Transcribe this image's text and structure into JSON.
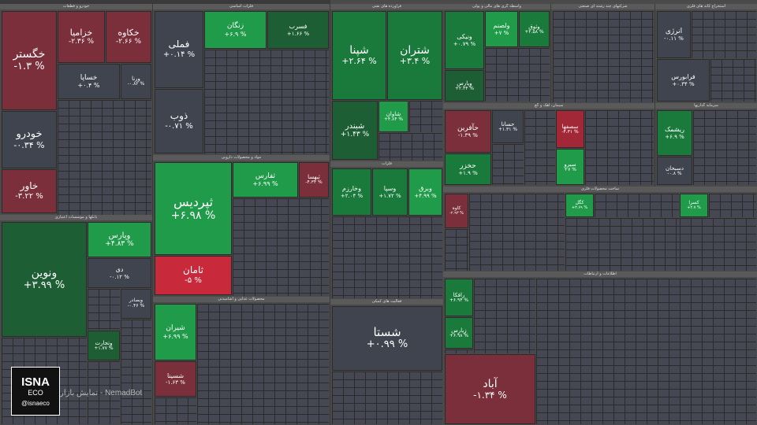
{
  "sections": {
    "auto": "خودرو و قطعات",
    "metals": "فلزات اساسی",
    "chem": "فرآورده های نفتی",
    "top": "کشاورزی",
    "bank": "بانکها و موسسات اعتباری",
    "finance": "واسطه گری های مالی و پولی",
    "multi": "شرکتهای چند رشته ای صنعتی",
    "oil": "استخراج کانه های فلزی",
    "cement": "سیمان، آهک و گچ",
    "invest": "سرمایه گذاریها",
    "mining": "فلزات",
    "pharma": "مواد و محصولات دارویی",
    "food": "محصولات غذایی و آشامیدنی",
    "retail": "فعالیت های کمکی",
    "electric": "ساخت محصولات فلزی",
    "telecom": "اطلاعات و ارتباطات",
    "utility": "عرضه برق، گاز، بخار",
    "transport": "حمل و نقل، انبارداری"
  },
  "tiles": [
    {
      "name": "خگستر",
      "pct": "-۱.۳ %"
    },
    {
      "name": "خزامیا",
      "pct": "-۲.۳۶ %"
    },
    {
      "name": "خکاوه",
      "pct": "-۲.۶۶ %"
    },
    {
      "name": "خساپا",
      "pct": "+۰.۴ %"
    },
    {
      "name": "ورنا",
      "pct": "-۰.۸۲ %"
    },
    {
      "name": "خودرو",
      "pct": "-۰.۳۴ %"
    },
    {
      "name": "خاور",
      "pct": "-۳.۲۲ %"
    },
    {
      "name": "فملی",
      "pct": "+۰.۱۴ %"
    },
    {
      "name": "ذوب",
      "pct": "-۰.۷۱ %"
    },
    {
      "name": "زنگان",
      "pct": "+۶.۹ %"
    },
    {
      "name": "فسرب",
      "pct": "+۱.۶۶ %"
    },
    {
      "name": "شپنا",
      "pct": "+۲.۶۴ %"
    },
    {
      "name": "شتران",
      "pct": "+۳.۴ %"
    },
    {
      "name": "شبندر",
      "pct": "+۱.۴۳ %"
    },
    {
      "name": "شاوان",
      "pct": "+۴.۸۴ %"
    },
    {
      "name": "ثپردیس",
      "pct": "+۶.۹۸ %"
    },
    {
      "name": "ثامان",
      "pct": "-۵ %"
    },
    {
      "name": "ثفارس",
      "pct": "+۶.۹۹ %"
    },
    {
      "name": "ثبهسا",
      "pct": "-۴.۳۴ %"
    },
    {
      "name": "ونوین",
      "pct": "+۳.۹۹ %"
    },
    {
      "name": "وپارس",
      "pct": "+۴.۸۳ %"
    },
    {
      "name": "دی",
      "pct": "-۰.۱۲ %"
    },
    {
      "name": "وبصادر",
      "pct": "-۰.۴۶ %"
    },
    {
      "name": "شستا",
      "pct": "+۰.۹۹ %"
    },
    {
      "name": "وخارزم",
      "pct": "+۲.۰۴ %"
    },
    {
      "name": "وسپا",
      "pct": "+۱.۷۲ %"
    },
    {
      "name": "وبرق",
      "pct": "+۴.۹۹ %"
    },
    {
      "name": "آباد",
      "pct": "-۱.۳۴ %"
    },
    {
      "name": "شیران",
      "pct": "+۶.۹۹ %"
    },
    {
      "name": "شسینا",
      "pct": "-۱.۶۳ %"
    },
    {
      "name": "وتجارت",
      "pct": "+۱.۷۷ %"
    },
    {
      "name": "ونیکی",
      "pct": "+۰.۷۹ %"
    },
    {
      "name": "ولصنم",
      "pct": "+۷ %"
    },
    {
      "name": "وثوق",
      "pct": "+۲.۵۸ %"
    },
    {
      "name": "وپارس",
      "pct": "+۲.۳۴ %"
    },
    {
      "name": "انرژی",
      "pct": "-۰.۱۱ %"
    },
    {
      "name": "فرابورس",
      "pct": "+۰.۳۴ %"
    },
    {
      "name": "حآفرین",
      "pct": "-۱.۳۹ %"
    },
    {
      "name": "حخزر",
      "pct": "+۱.۹ %"
    },
    {
      "name": "حسانا",
      "pct": "+۱.۳۱ %"
    },
    {
      "name": "سصفها",
      "pct": "-۴.۳۱ %"
    },
    {
      "name": "سیرو",
      "pct": "+۷ %"
    },
    {
      "name": "ریشمک",
      "pct": "+۶.۹ %"
    },
    {
      "name": "دسبحان",
      "pct": "-۰.۸ %"
    },
    {
      "name": "رافکا",
      "pct": "+۶.۹۴ %"
    },
    {
      "name": "زپارس",
      "pct": "+۶.۹۸ %"
    },
    {
      "name": "کگل",
      "pct": "+۳.۶۹ %"
    },
    {
      "name": "کاوه",
      "pct": "-۲.۹۳ %"
    },
    {
      "name": "کسرا",
      "pct": "+۲.۷ %"
    }
  ],
  "watermark": "نمایش بازار - NemadBot",
  "logo": {
    "line1": "ISNA",
    "line2": "ECO",
    "line3": "@isnaeco"
  }
}
